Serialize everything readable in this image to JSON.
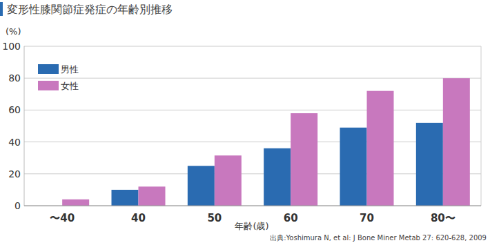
{
  "chart_data": {
    "type": "bar",
    "title": "変形性膝関節症発症の年齢別推移",
    "y_label": "(%)",
    "x_label": "年齢(歳)",
    "source": "出典:Yoshimura N, et al: J Bone Miner Metab 27:  620-628, 2009",
    "categories": [
      "〜40",
      "40",
      "50",
      "60",
      "70",
      "80〜"
    ],
    "series": [
      {
        "name": "男性",
        "color": "#2a6bb1",
        "values": [
          0,
          10,
          25,
          36,
          49,
          52
        ]
      },
      {
        "name": "女性",
        "color": "#c878be",
        "values": [
          4,
          12,
          31.5,
          58,
          72,
          80
        ]
      }
    ],
    "ylim": [
      0,
      100
    ],
    "yticks": [
      0,
      20,
      40,
      60,
      80,
      100
    ],
    "grid": true,
    "legend": "top-left"
  }
}
